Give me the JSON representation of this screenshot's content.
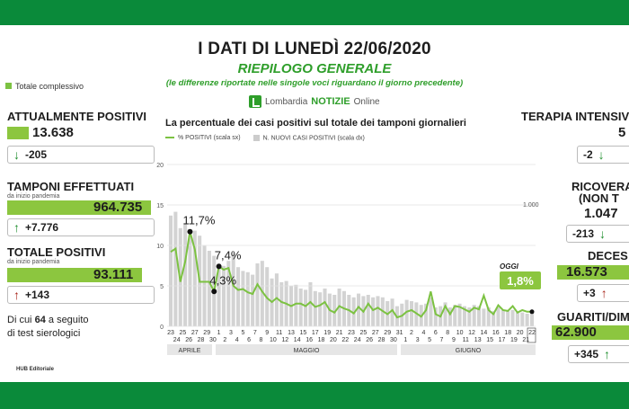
{
  "header": {
    "title": "I DATI DI LUNEDÌ 22/06/2020",
    "subtitle": "RIEPILOGO GENERALE",
    "note": "(le differenze riportate nelle singole voci riguardano il giorno precedente)",
    "brand_prefix": "Lombardia",
    "brand_name": "NOTIZIE",
    "brand_suffix": "Online"
  },
  "colors": {
    "band": "#0a8a3a",
    "accent": "#8cc63f",
    "up": "#1f8f2e",
    "down": "#a8251b"
  },
  "left": {
    "legend": "Totale complessivo",
    "attualmente_positivi": {
      "label": "ATTUALMENTE POSITIVI",
      "value": "13.638",
      "delta": "-205",
      "delta_icon": "arrow-down-icon"
    },
    "tamponi": {
      "label": "TAMPONI EFFETTUATI",
      "sub": "da inizio pandemia",
      "value": "964.735",
      "delta": "+7.776",
      "delta_icon": "arrow-up-icon"
    },
    "totale_positivi": {
      "label": "TOTALE POSITIVI",
      "sub": "da inizio pandemia",
      "value": "93.111",
      "delta": "+143",
      "delta_icon": "arrow-up-icon"
    },
    "sierologici_pre": "Di cui",
    "sierologici_num": "64",
    "sierologici_post": "a seguito",
    "sierologici_line2": "di test sierologici",
    "credit": "HUB Editoriale"
  },
  "right": {
    "terapia": {
      "label": "TERAPIA INTENSIV",
      "value": "5",
      "delta": "-2"
    },
    "ricoverati": {
      "label": "RICOVERA",
      "label2": "(NON T",
      "value": "1.047",
      "delta": "-213"
    },
    "decessi": {
      "label": "DECES",
      "value": "16.573",
      "delta": "+3"
    },
    "guariti": {
      "label": "GUARITI/DIMES",
      "value": "62.900",
      "delta": "+345"
    }
  },
  "chart_data": {
    "type": "line",
    "title": "La percentuale dei casi positivi sul totale dei tamponi giornalieri",
    "legend": [
      "% POSITIVI (scala sx)",
      "N. NUOVI CASI POSITIVI (scala dx)"
    ],
    "yticks": [
      "20",
      "15",
      "10",
      "5",
      "0"
    ],
    "y_right_tick": "1.000",
    "ylim": [
      0,
      20
    ],
    "x_ticks_top": [
      "23",
      "25",
      "27",
      "29",
      "1",
      "3",
      "5",
      "7",
      "9",
      "11",
      "13",
      "15",
      "17",
      "19",
      "21",
      "23",
      "25",
      "27",
      "29",
      "31",
      "2",
      "4",
      "6",
      "8",
      "10",
      "12",
      "14",
      "16",
      "18",
      "20",
      "22"
    ],
    "x_ticks_bottom": [
      "24",
      "26",
      "28",
      "30",
      "2",
      "4",
      "6",
      "8",
      "10",
      "12",
      "14",
      "16",
      "18",
      "20",
      "22",
      "24",
      "26",
      "28",
      "30",
      "1",
      "3",
      "5",
      "7",
      "9",
      "11",
      "13",
      "15",
      "17",
      "19",
      "21"
    ],
    "months": [
      "APRILE",
      "MAGGIO",
      "GIUGNO"
    ],
    "percent_series": [
      9.2,
      9.6,
      5.5,
      8.0,
      11.7,
      9.5,
      5.5,
      5.5,
      5.5,
      4.3,
      7.4,
      7.0,
      7.2,
      5.0,
      4.5,
      4.6,
      4.2,
      4.0,
      5.2,
      4.3,
      3.5,
      3.0,
      3.5,
      3.0,
      2.8,
      2.5,
      2.8,
      2.8,
      2.5,
      3.0,
      2.4,
      2.6,
      3.0,
      2.0,
      1.7,
      2.5,
      2.2,
      2.0,
      1.6,
      2.4,
      1.8,
      2.8,
      2.0,
      2.3,
      1.9,
      1.5,
      2.0,
      1.1,
      1.3,
      1.8,
      2.0,
      1.6,
      1.2,
      2.0,
      4.3,
      1.5,
      1.2,
      2.5,
      1.5,
      2.5,
      2.4,
      2.1,
      1.8,
      2.3,
      2.1,
      3.8,
      2.0,
      1.5,
      2.6,
      2.0,
      1.9,
      2.5,
      1.7,
      2.0,
      1.8,
      1.8
    ],
    "new_cases_series": [
      880,
      910,
      780,
      820,
      720,
      760,
      720,
      640,
      600,
      560,
      500,
      480,
      520,
      580,
      470,
      440,
      430,
      410,
      500,
      520,
      470,
      380,
      420,
      350,
      360,
      320,
      330,
      300,
      290,
      350,
      280,
      270,
      300,
      260,
      250,
      300,
      280,
      250,
      230,
      260,
      240,
      250,
      230,
      240,
      230,
      200,
      220,
      160,
      180,
      210,
      200,
      190,
      170,
      180,
      230,
      150,
      160,
      190,
      150,
      170,
      180,
      160,
      150,
      170,
      160,
      140,
      150,
      120,
      150,
      130,
      120,
      130,
      110,
      110,
      100,
      100
    ],
    "annotations": [
      {
        "label": "11,7%",
        "value": 11.7
      },
      {
        "label": "7,4%",
        "value": 7.4
      },
      {
        "label": "4,3%",
        "value": 4.3
      }
    ],
    "today_label": "OGGI",
    "today_value": "1,8%"
  }
}
